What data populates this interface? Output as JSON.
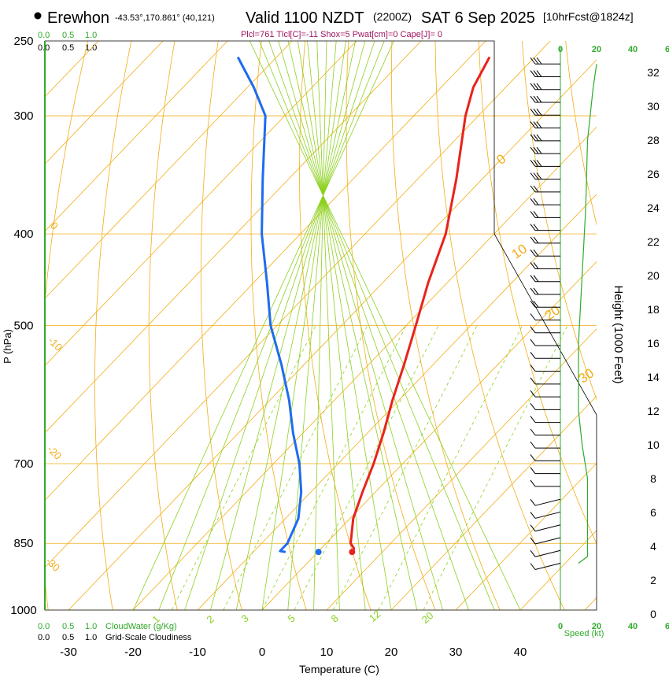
{
  "chart_data": {
    "type": "line",
    "title": {
      "location": "Erewhon",
      "coords": "-43.53°,170.861° (40,121)",
      "valid": "Valid 1100 NZDT",
      "utc": "(2200Z)",
      "date": "SAT 6 Sep 2025",
      "forecast": "[10hrFcst@1824z]"
    },
    "subtitle": "Plcl=761 Tlcl[C]=-11 Shox=5 Pwat[cm]=0 Cape[J]= 0",
    "xlabel": "Temperature (C)",
    "ylabel": "P (hPa)",
    "y2label": "Height (1000 Feet)",
    "xlim": [
      -35,
      45
    ],
    "x_ticks": [
      "-30",
      "-20",
      "-10",
      "0",
      "10",
      "20",
      "30",
      "40"
    ],
    "pressure_ticks": [
      "250",
      "300",
      "400",
      "500",
      "700",
      "850",
      "1000"
    ],
    "height_ticks": [
      "0",
      "2",
      "4",
      "6",
      "8",
      "10",
      "12",
      "14",
      "16",
      "18",
      "20",
      "22",
      "24",
      "26",
      "28",
      "30",
      "32"
    ],
    "cloud_scale_top_green": [
      "0.0",
      "0.5",
      "1.0"
    ],
    "cloud_scale_top_black": [
      "0.0",
      "0.5",
      "1.0"
    ],
    "cloud_scale_bottom_green": [
      "0.0",
      "0.5",
      "1.0"
    ],
    "cloud_scale_bottom_black": [
      "0.0",
      "0.5",
      "1.0"
    ],
    "cloudwater_label": "CloudWater (g/Kg)",
    "cloudiness_label": "Grid-Scale Cloudiness",
    "speed_ticks": [
      "0",
      "20",
      "40",
      "6"
    ],
    "speed_label": "Speed (kt)",
    "isotherm_labels": [
      "0",
      "10",
      "20",
      "30"
    ],
    "mixing_ratio_labels": [
      "1",
      "2",
      "3",
      "5",
      "8",
      "12",
      "20"
    ],
    "left_temp_labels": [
      "-30",
      "-20",
      "-10",
      "0"
    ],
    "temperature_profile": [
      {
        "p": 868,
        "t": 5.5
      },
      {
        "p": 860,
        "t": 5.0
      },
      {
        "p": 850,
        "t": 3.8
      },
      {
        "p": 800,
        "t": 0.5
      },
      {
        "p": 750,
        "t": -2.0
      },
      {
        "p": 700,
        "t": -4.5
      },
      {
        "p": 650,
        "t": -7.5
      },
      {
        "p": 600,
        "t": -11.0
      },
      {
        "p": 550,
        "t": -14.5
      },
      {
        "p": 500,
        "t": -18.5
      },
      {
        "p": 450,
        "t": -23.0
      },
      {
        "p": 400,
        "t": -27.5
      },
      {
        "p": 350,
        "t": -34.0
      },
      {
        "p": 300,
        "t": -42.0
      },
      {
        "p": 280,
        "t": -45.0
      },
      {
        "p": 260,
        "t": -47.0
      }
    ],
    "dewpoint_profile": [
      {
        "p": 868,
        "t": -5.0
      },
      {
        "p": 866,
        "t": -6.0
      },
      {
        "p": 850,
        "t": -6.0
      },
      {
        "p": 800,
        "t": -8.0
      },
      {
        "p": 750,
        "t": -11.5
      },
      {
        "p": 700,
        "t": -16.0
      },
      {
        "p": 650,
        "t": -21.5
      },
      {
        "p": 600,
        "t": -27.0
      },
      {
        "p": 550,
        "t": -33.5
      },
      {
        "p": 500,
        "t": -41.0
      },
      {
        "p": 450,
        "t": -48.0
      },
      {
        "p": 400,
        "t": -56.0
      },
      {
        "p": 350,
        "t": -64.0
      },
      {
        "p": 300,
        "t": -73.0
      },
      {
        "p": 280,
        "t": -79.0
      },
      {
        "p": 260,
        "t": -86.0
      }
    ],
    "parcel_points": [
      {
        "p": 868,
        "t": 5.3,
        "color": "#e8231c"
      },
      {
        "p": 868,
        "t": 0.1,
        "color": "#1e6cf0"
      }
    ],
    "wind_profile_kt": [
      {
        "h": 3.0,
        "spd": 10
      },
      {
        "h": 3.4,
        "spd": 15
      },
      {
        "h": 3.8,
        "spd": 15
      },
      {
        "h": 4.5,
        "spd": 15
      },
      {
        "h": 5.5,
        "spd": 15
      },
      {
        "h": 6.5,
        "spd": 15
      },
      {
        "h": 8.0,
        "spd": 15
      },
      {
        "h": 10.0,
        "spd": 12
      },
      {
        "h": 12.0,
        "spd": 10
      },
      {
        "h": 14.0,
        "spd": 10
      },
      {
        "h": 16.0,
        "spd": 10
      },
      {
        "h": 20.0,
        "spd": 12
      },
      {
        "h": 24.0,
        "spd": 14
      },
      {
        "h": 28.0,
        "spd": 15
      },
      {
        "h": 31.0,
        "spd": 18
      },
      {
        "h": 32.5,
        "spd": 20
      }
    ],
    "colors": {
      "temperature": "#e8231c",
      "dewpoint": "#1e6cf0",
      "isotherm": "#f2ad16",
      "dry_adiabat": "#f2ad16",
      "moist_adiabat": "#8cd11f",
      "mixing_ratio": "#8cd11f",
      "speed": "#2faa2a",
      "title_sub": "#a01560",
      "cloud": "#2faa2a"
    }
  }
}
